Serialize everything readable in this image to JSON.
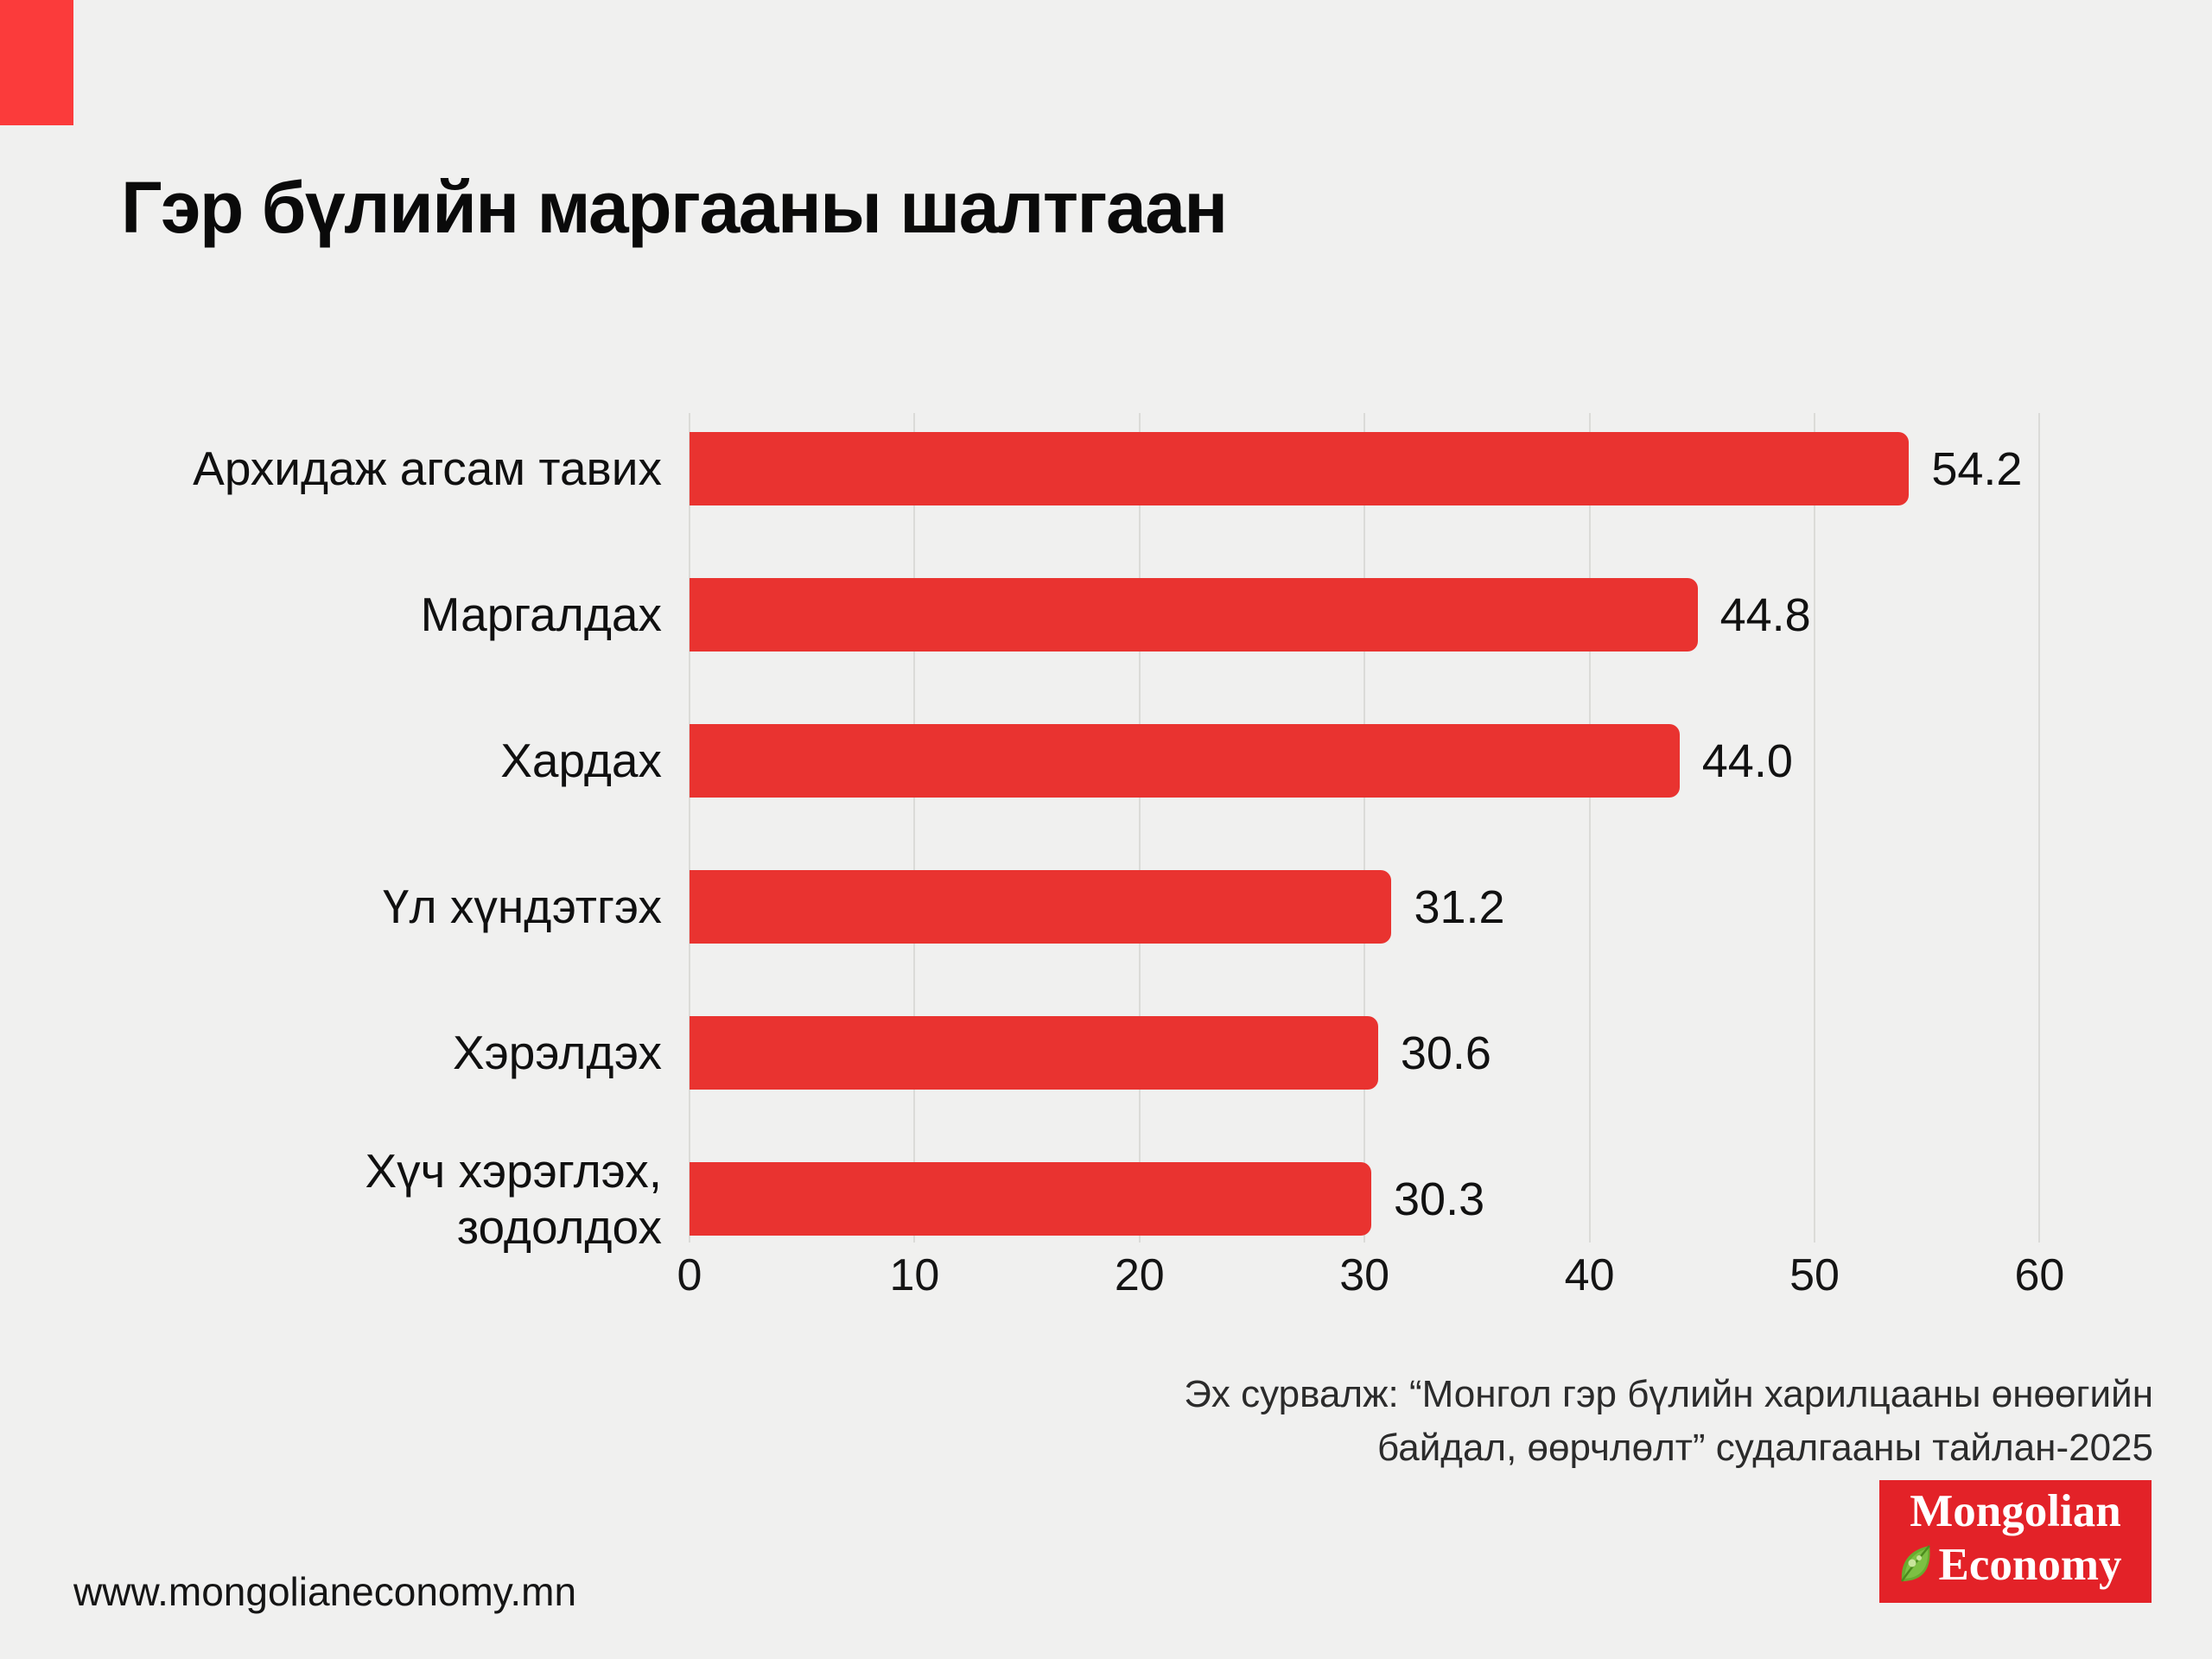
{
  "page": {
    "title": "Гэр бүлийн маргааны шалтгаан",
    "website": "www.mongolianeconomy.mn",
    "background_color": "#F0F0EF",
    "accent_color": "#FB3B3B"
  },
  "chart_data": {
    "type": "bar",
    "orientation": "horizontal",
    "title": "Гэр бүлийн маргааны шалтгаан",
    "categories": [
      "Архидаж агсам тавих",
      "Маргалдах",
      "Хардах",
      "Үл хүндэтгэх",
      "Хэрэлдэх",
      "Хүч хэрэглэх,\nзодолдох"
    ],
    "values": [
      54.2,
      44.8,
      44.0,
      31.2,
      30.6,
      30.3
    ],
    "value_labels": [
      "54.2",
      "44.8",
      "44.0",
      "31.2",
      "30.6",
      "30.3"
    ],
    "xlabel": "",
    "ylabel": "",
    "xlim": [
      0,
      60
    ],
    "xticks": [
      0,
      10,
      20,
      30,
      40,
      50,
      60
    ],
    "grid": true,
    "gridline_color": "#DBDBD8",
    "bar_color": "#E93330",
    "legend": "none"
  },
  "source": {
    "lines": [
      "Эх сурвалж: “Монгол гэр бүлийн харилцааны өнөөгийн",
      "байдал, өөрчлөлт” судалгааны тайлан-2025"
    ]
  },
  "logo": {
    "line1": "Mongolian",
    "line2": "Economy",
    "background_color": "#E32228"
  }
}
